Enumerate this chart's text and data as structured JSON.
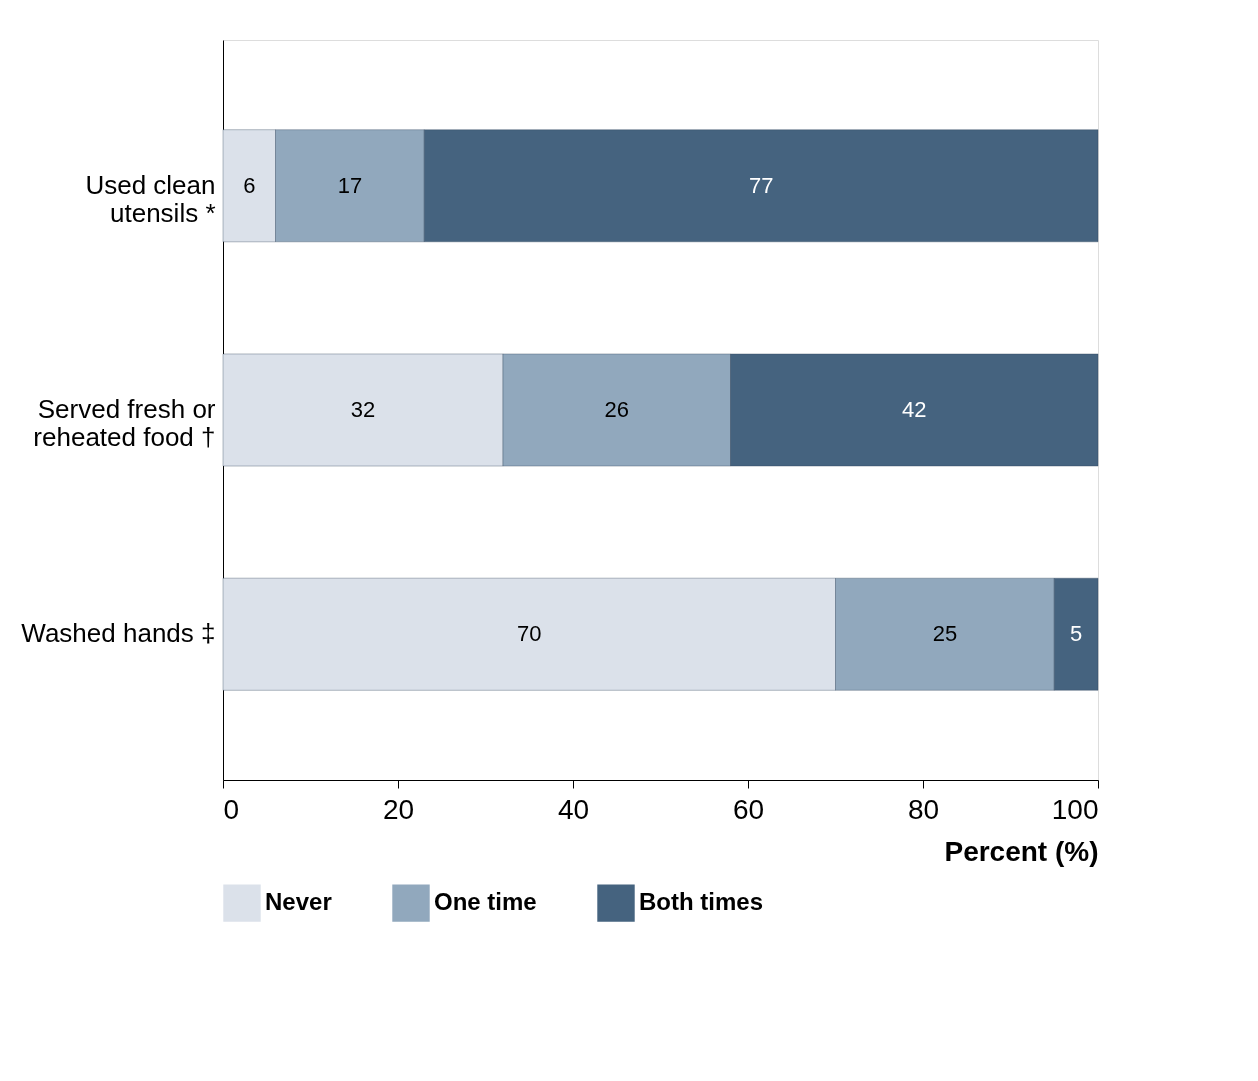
{
  "chart_data": {
    "type": "bar",
    "orientation": "horizontal",
    "stacked": true,
    "data_labels": true,
    "categories": [
      "Used clean utensils *",
      "Served fresh or reheated food †",
      "Washed hands ‡"
    ],
    "series": [
      {
        "name": "Never",
        "color": "#dbe1ea",
        "values": [
          6,
          32,
          70
        ]
      },
      {
        "name": "One time",
        "color": "#91a8bd",
        "values": [
          17,
          26,
          25
        ]
      },
      {
        "name": "Both times",
        "color": "#45637f",
        "values": [
          77,
          42,
          5
        ]
      }
    ],
    "xlabel": "Percent (%)",
    "xlim": [
      0,
      100
    ],
    "xticks": [
      0,
      20,
      40,
      60,
      80,
      100
    ],
    "grid": false,
    "legend": "bottom"
  }
}
